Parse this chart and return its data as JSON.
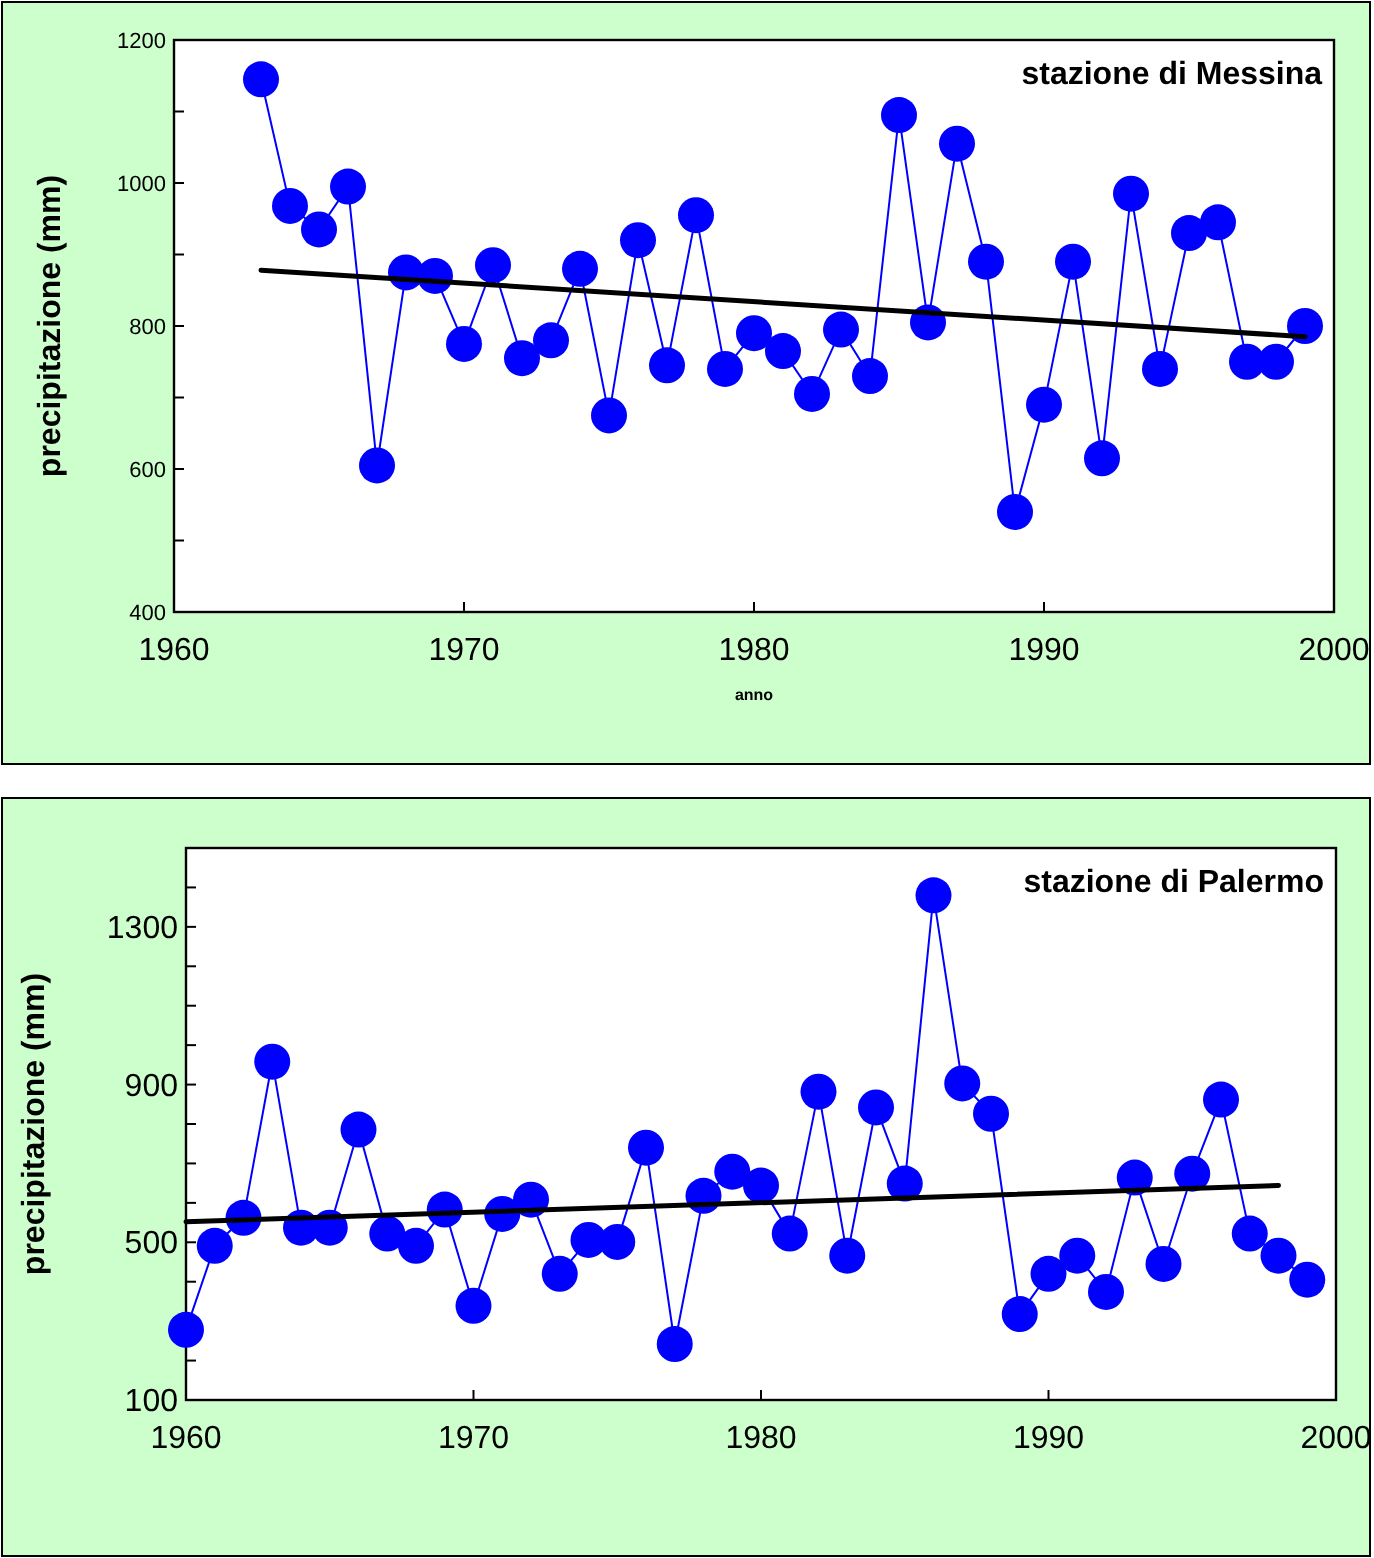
{
  "chart_data": [
    {
      "type": "line",
      "title": "stazione di Messina",
      "xlabel": "anno",
      "ylabel": "precipitazione (mm)",
      "x": [
        1963,
        1964,
        1965,
        1966,
        1967,
        1968,
        1969,
        1970,
        1971,
        1972,
        1973,
        1974,
        1975,
        1976,
        1977,
        1978,
        1979,
        1980,
        1981,
        1982,
        1983,
        1984,
        1985,
        1986,
        1987,
        1988,
        1989,
        1990,
        1991,
        1992,
        1993,
        1994,
        1995,
        1996,
        1997,
        1998,
        1999
      ],
      "series": [
        {
          "color": "#0000ff",
          "values": [
            1145,
            968,
            935,
            995,
            605,
            875,
            870,
            775,
            885,
            755,
            780,
            880,
            675,
            920,
            745,
            955,
            740,
            790,
            765,
            705,
            795,
            730,
            1095,
            805,
            1055,
            890,
            540,
            690,
            890,
            615,
            985,
            740,
            930,
            945,
            750,
            750,
            800
          ]
        },
        {
          "type": "line",
          "color": "#000000",
          "marker": "none",
          "x": [
            1963,
            1999
          ],
          "values": [
            878,
            785
          ]
        }
      ],
      "xlim": [
        1960,
        2000
      ],
      "xticks": [
        1960,
        1970,
        1980,
        1990,
        2000
      ],
      "ylim": [
        400,
        1200
      ],
      "yticks": [
        400,
        {
          "value": 500,
          "label": null
        },
        600,
        {
          "value": 700,
          "label": null
        },
        800,
        {
          "value": 900,
          "label": null
        },
        1000,
        {
          "value": 1100,
          "label": null
        },
        1200
      ],
      "grid": false,
      "marker": "circle",
      "line_style": "solid"
    },
    {
      "type": "line",
      "title": "stazione di Palermo",
      "ylabel": "precipitazione (mm)",
      "x": [
        1960,
        1961,
        1962,
        1963,
        1964,
        1965,
        1966,
        1967,
        1968,
        1969,
        1970,
        1971,
        1972,
        1973,
        1974,
        1975,
        1976,
        1977,
        1978,
        1979,
        1980,
        1981,
        1982,
        1983,
        1984,
        1985,
        1986,
        1987,
        1988,
        1989,
        1990,
        1991,
        1992,
        1993,
        1994,
        1995,
        1996,
        1997,
        1998,
        1999
      ],
      "series": [
        {
          "color": "#0000ff",
          "values": [
            278,
            491,
            562,
            958,
            537,
            537,
            786,
            522,
            491,
            583,
            339,
            572,
            608,
            420,
            506,
            501,
            740,
            242,
            618,
            679,
            644,
            522,
            882,
            466,
            842,
            649,
            1380,
            903,
            826,
            318,
            420,
            466,
            374,
            664,
            445,
            674,
            862,
            522,
            466,
            405
          ]
        },
        {
          "type": "line",
          "color": "#000000",
          "marker": "none",
          "x": [
            1960,
            1998
          ],
          "values": [
            552,
            644
          ]
        }
      ],
      "xlim": [
        1960,
        2000
      ],
      "xticks": [
        1960,
        1970,
        1980,
        1990,
        2000
      ],
      "ylim": [
        100,
        1500
      ],
      "yticks": [
        100,
        {
          "value": 200,
          "label": null
        },
        {
          "value": 300,
          "label": null
        },
        {
          "value": 400,
          "label": null
        },
        500,
        {
          "value": 600,
          "label": null
        },
        {
          "value": 700,
          "label": null
        },
        {
          "value": 800,
          "label": null
        },
        900,
        {
          "value": 1000,
          "label": null
        },
        {
          "value": 1100,
          "label": null
        },
        {
          "value": 1200,
          "label": null
        },
        1300,
        {
          "value": 1400,
          "label": null
        },
        {
          "value": 1500,
          "label": null
        }
      ],
      "grid": false,
      "marker": "circle",
      "line_style": "solid"
    }
  ]
}
